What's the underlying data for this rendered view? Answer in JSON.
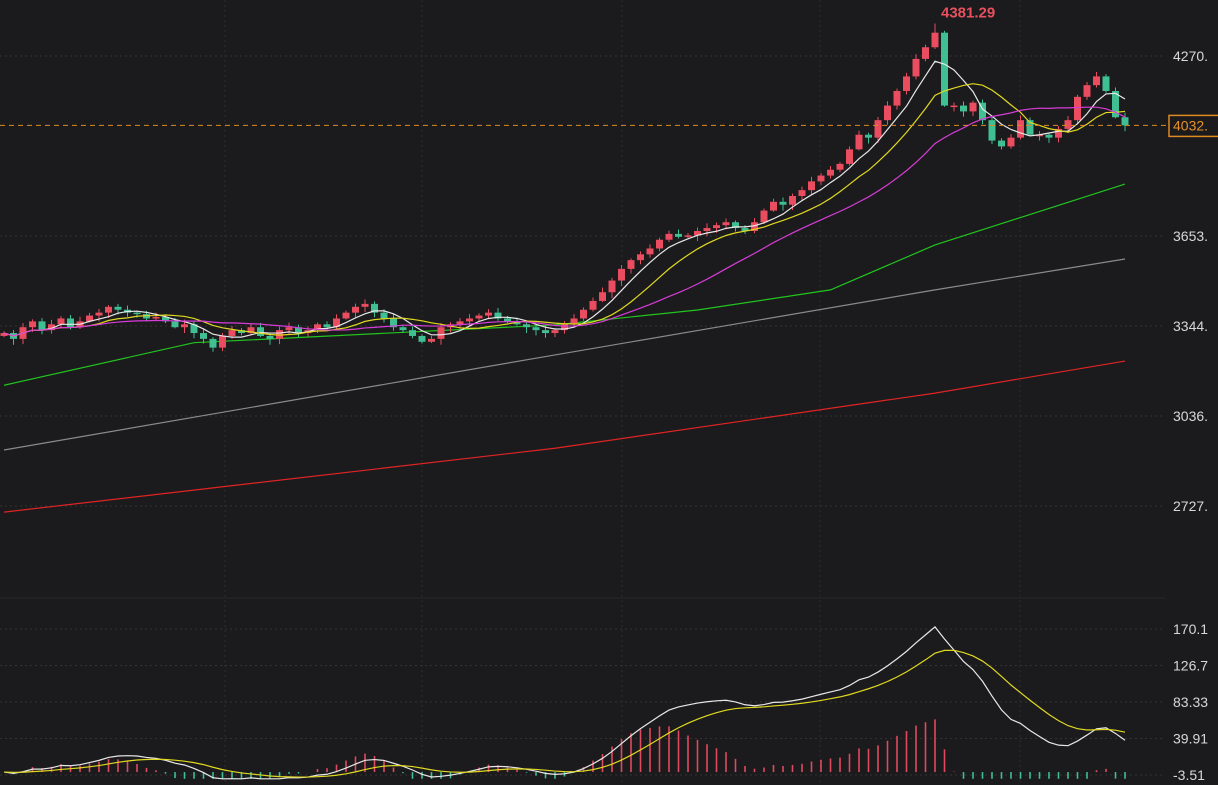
{
  "chart_data": [
    {
      "type": "candlestick",
      "panel": "price",
      "closes": [
        3320,
        3300,
        3340,
        3360,
        3330,
        3350,
        3370,
        3340,
        3360,
        3380,
        3390,
        3410,
        3400,
        3390,
        3385,
        3370,
        3375,
        3360,
        3340,
        3350,
        3320,
        3300,
        3270,
        3310,
        3330,
        3320,
        3340,
        3310,
        3300,
        3330,
        3340,
        3320,
        3330,
        3350,
        3340,
        3370,
        3390,
        3410,
        3420,
        3390,
        3370,
        3340,
        3330,
        3310,
        3290,
        3300,
        3340,
        3350,
        3360,
        3370,
        3380,
        3390,
        3370,
        3360,
        3350,
        3340,
        3330,
        3320,
        3330,
        3350,
        3370,
        3400,
        3430,
        3460,
        3500,
        3540,
        3570,
        3590,
        3610,
        3640,
        3660,
        3650,
        3655,
        3670,
        3680,
        3690,
        3700,
        3680,
        3670,
        3700,
        3740,
        3770,
        3760,
        3790,
        3810,
        3840,
        3860,
        3880,
        3900,
        3950,
        4000,
        3990,
        4050,
        4100,
        4150,
        4200,
        4260,
        4300,
        4350,
        4100,
        4100,
        4080,
        4110,
        4050,
        3980,
        3960,
        3990,
        4050,
        4000,
        4000,
        3990,
        4020,
        4050,
        4130,
        4170,
        4200,
        4150,
        4060,
        4032
      ],
      "peak": {
        "index": 98,
        "value": 4381.29,
        "label": "4381.29"
      },
      "current_price": {
        "value": 4032,
        "label": "4032."
      },
      "y_ticks": [
        {
          "value": 4270,
          "label": "4270."
        },
        {
          "value": 3653,
          "label": "3653."
        },
        {
          "value": 3344,
          "label": "3344."
        },
        {
          "value": 3036,
          "label": "3036."
        },
        {
          "value": 2727,
          "label": "2727."
        }
      ],
      "ylim": [
        2640,
        4420
      ],
      "moving_averages": [
        {
          "period": 5,
          "color": "#e8e8e8"
        },
        {
          "period": 10,
          "color": "#e0d820"
        },
        {
          "period": 20,
          "color": "#d83cd8"
        }
      ],
      "long_lines": [
        {
          "color": "#22c41e",
          "points": [
            [
              0,
              3141
            ],
            [
              20,
              3287
            ],
            [
              58,
              3348
            ],
            [
              73,
              3399
            ],
            [
              87,
              3468
            ],
            [
              98,
              3622
            ],
            [
              118,
              3831
            ]
          ]
        },
        {
          "color": "#8a8a8a",
          "points": [
            [
              0,
              2919
            ],
            [
              58,
              3245
            ],
            [
              98,
              3468
            ],
            [
              118,
              3574
            ]
          ]
        },
        {
          "color": "#e02424",
          "points": [
            [
              0,
              2706
            ],
            [
              58,
              2925
            ],
            [
              98,
              3114
            ],
            [
              118,
              3224
            ]
          ]
        }
      ],
      "colors": {
        "up": "#ea4d5f",
        "down": "#3fbf92",
        "current": "#e08a22",
        "background": "#1b1b1d"
      },
      "grid": true
    },
    {
      "type": "macd",
      "panel": "indicator",
      "y_ticks": [
        {
          "value": 170.1,
          "label": "170.1"
        },
        {
          "value": 126.7,
          "label": "126.7"
        },
        {
          "value": 83.33,
          "label": "83.33"
        },
        {
          "value": 39.91,
          "label": "39.91"
        },
        {
          "value": -3.51,
          "label": "-3.51"
        }
      ],
      "ylim": [
        -8,
        180
      ],
      "colors": {
        "dif": "#e8e8e8",
        "dea": "#e0d820",
        "hist_up": "#e04a5e",
        "hist_down": "#3fbf92"
      },
      "grid": true
    }
  ]
}
